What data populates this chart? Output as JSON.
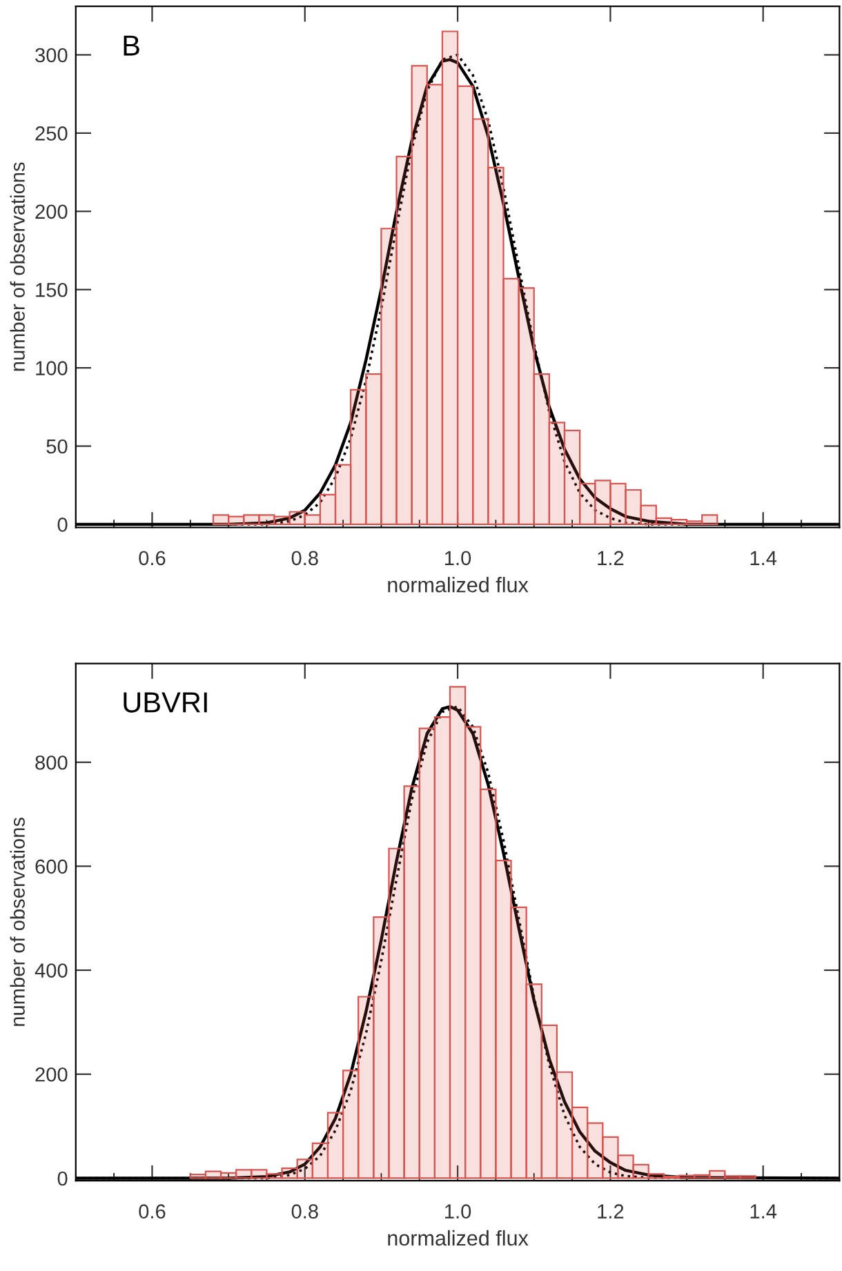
{
  "chart_data": [
    {
      "type": "histogram",
      "xlabel": "normalized flux",
      "ylabel": "number of observations",
      "annotations": [
        "B"
      ],
      "xlim": [
        0.5,
        1.5
      ],
      "ylim": [
        -2,
        331
      ],
      "xticks": [
        {
          "value": 0.5,
          "label": null
        },
        {
          "value": 0.55,
          "label": null
        },
        0.6,
        {
          "value": 0.65,
          "label": null
        },
        {
          "value": 0.7,
          "label": null
        },
        {
          "value": 0.75,
          "label": null
        },
        0.8,
        {
          "value": 0.85,
          "label": null
        },
        {
          "value": 0.9,
          "label": null
        },
        {
          "value": 0.95,
          "label": null
        },
        {
          "value": 1.0,
          "label": "1.0"
        },
        {
          "value": 1.05,
          "label": null
        },
        {
          "value": 1.1,
          "label": null
        },
        {
          "value": 1.15,
          "label": null
        },
        1.2,
        {
          "value": 1.25,
          "label": null
        },
        {
          "value": 1.3,
          "label": null
        },
        {
          "value": 1.35,
          "label": null
        },
        1.4,
        {
          "value": 1.45,
          "label": null
        }
      ],
      "yticks": [
        0,
        50,
        100,
        150,
        200,
        250,
        300
      ],
      "grid": false,
      "series": [
        {
          "type": "histogram",
          "color": "#d9534f",
          "bins": [
            0.68,
            0.7,
            0.72,
            0.74,
            0.76,
            0.78,
            0.8,
            0.82,
            0.84,
            0.86,
            0.88,
            0.9,
            0.92,
            0.94,
            0.96,
            0.98,
            1.0,
            1.02,
            1.04,
            1.06,
            1.08,
            1.1,
            1.12,
            1.14,
            1.16,
            1.18,
            1.2,
            1.22,
            1.24,
            1.26,
            1.28,
            1.3,
            1.32,
            1.34
          ],
          "values": [
            6,
            5,
            6,
            6,
            5,
            8,
            6,
            19,
            38,
            86,
            96,
            189,
            235,
            293,
            281,
            315,
            280,
            259,
            228,
            157,
            151,
            96,
            65,
            60,
            26,
            28,
            26,
            22,
            12,
            4,
            3,
            2,
            6
          ]
        },
        {
          "type": "line",
          "color": "#000000",
          "line_style": "solid",
          "x": [
            0.5,
            0.7,
            0.75,
            0.78,
            0.8,
            0.82,
            0.84,
            0.86,
            0.88,
            0.9,
            0.92,
            0.94,
            0.96,
            0.98,
            0.99,
            1.0,
            1.02,
            1.04,
            1.06,
            1.08,
            1.1,
            1.12,
            1.14,
            1.16,
            1.18,
            1.2,
            1.22,
            1.25,
            1.3,
            1.5
          ],
          "values": [
            0,
            0,
            1,
            4,
            9,
            20,
            38,
            65,
            105,
            150,
            200,
            245,
            280,
            296,
            297,
            295,
            280,
            248,
            205,
            158,
            112,
            75,
            48,
            29,
            17,
            10,
            5,
            2,
            0,
            0
          ]
        },
        {
          "type": "line",
          "color": "#000000",
          "line_style": "dotted",
          "x": [
            0.5,
            0.75,
            0.78,
            0.8,
            0.82,
            0.84,
            0.86,
            0.88,
            0.9,
            0.92,
            0.94,
            0.96,
            0.98,
            1.0,
            1.02,
            1.04,
            1.06,
            1.08,
            1.1,
            1.12,
            1.14,
            1.16,
            1.18,
            1.2,
            1.22,
            1.25,
            1.5
          ],
          "values": [
            0,
            0,
            2,
            6,
            14,
            30,
            55,
            92,
            138,
            190,
            240,
            277,
            297,
            300,
            287,
            258,
            215,
            165,
            115,
            72,
            40,
            20,
            9,
            4,
            1,
            0,
            0
          ]
        }
      ]
    },
    {
      "type": "histogram",
      "xlabel": "normalized flux",
      "ylabel": "number of observations",
      "annotations": [
        "UBVRI"
      ],
      "xlim": [
        0.5,
        1.5
      ],
      "ylim": [
        -5,
        990
      ],
      "xticks": [
        {
          "value": 0.5,
          "label": null
        },
        {
          "value": 0.55,
          "label": null
        },
        0.6,
        {
          "value": 0.65,
          "label": null
        },
        {
          "value": 0.7,
          "label": null
        },
        {
          "value": 0.75,
          "label": null
        },
        0.8,
        {
          "value": 0.85,
          "label": null
        },
        {
          "value": 0.9,
          "label": null
        },
        {
          "value": 0.95,
          "label": null
        },
        {
          "value": 1.0,
          "label": "1.0"
        },
        {
          "value": 1.05,
          "label": null
        },
        {
          "value": 1.1,
          "label": null
        },
        {
          "value": 1.15,
          "label": null
        },
        1.2,
        {
          "value": 1.25,
          "label": null
        },
        {
          "value": 1.3,
          "label": null
        },
        {
          "value": 1.35,
          "label": null
        },
        1.4,
        {
          "value": 1.45,
          "label": null
        }
      ],
      "yticks": [
        0,
        200,
        400,
        600,
        800
      ],
      "grid": false,
      "series": [
        {
          "type": "histogram",
          "color": "#d9534f",
          "bins": [
            0.65,
            0.67,
            0.69,
            0.71,
            0.73,
            0.75,
            0.77,
            0.79,
            0.81,
            0.83,
            0.85,
            0.87,
            0.89,
            0.91,
            0.93,
            0.95,
            0.97,
            0.99,
            1.01,
            1.03,
            1.05,
            1.07,
            1.09,
            1.11,
            1.13,
            1.15,
            1.17,
            1.19,
            1.21,
            1.23,
            1.25,
            1.27,
            1.29,
            1.31,
            1.33,
            1.35,
            1.37,
            1.39
          ],
          "values": [
            7,
            13,
            10,
            16,
            16,
            8,
            19,
            36,
            67,
            126,
            207,
            349,
            502,
            634,
            754,
            865,
            887,
            945,
            868,
            748,
            611,
            521,
            373,
            294,
            204,
            136,
            106,
            79,
            44,
            26,
            8,
            3,
            5,
            6,
            14,
            4,
            4
          ]
        },
        {
          "type": "line",
          "color": "#000000",
          "line_style": "solid",
          "x": [
            0.5,
            0.7,
            0.75,
            0.78,
            0.8,
            0.82,
            0.84,
            0.86,
            0.88,
            0.9,
            0.92,
            0.94,
            0.96,
            0.98,
            0.99,
            1.0,
            1.02,
            1.04,
            1.06,
            1.08,
            1.1,
            1.12,
            1.14,
            1.16,
            1.18,
            1.2,
            1.22,
            1.25,
            1.3,
            1.5
          ],
          "values": [
            0,
            0,
            3,
            12,
            27,
            60,
            115,
            200,
            320,
            458,
            610,
            750,
            855,
            903,
            907,
            900,
            855,
            757,
            626,
            482,
            342,
            229,
            147,
            89,
            52,
            30,
            15,
            6,
            1,
            0
          ]
        },
        {
          "type": "line",
          "color": "#000000",
          "line_style": "dotted",
          "x": [
            0.5,
            0.75,
            0.78,
            0.8,
            0.82,
            0.84,
            0.86,
            0.88,
            0.9,
            0.92,
            0.94,
            0.96,
            0.98,
            1.0,
            1.02,
            1.04,
            1.06,
            1.08,
            1.1,
            1.12,
            1.14,
            1.16,
            1.18,
            1.2,
            1.22,
            1.25,
            1.5
          ],
          "values": [
            0,
            0,
            6,
            18,
            43,
            92,
            168,
            278,
            418,
            575,
            728,
            838,
            897,
            907,
            868,
            780,
            650,
            500,
            348,
            218,
            121,
            60,
            27,
            11,
            4,
            1,
            0
          ]
        }
      ]
    }
  ]
}
